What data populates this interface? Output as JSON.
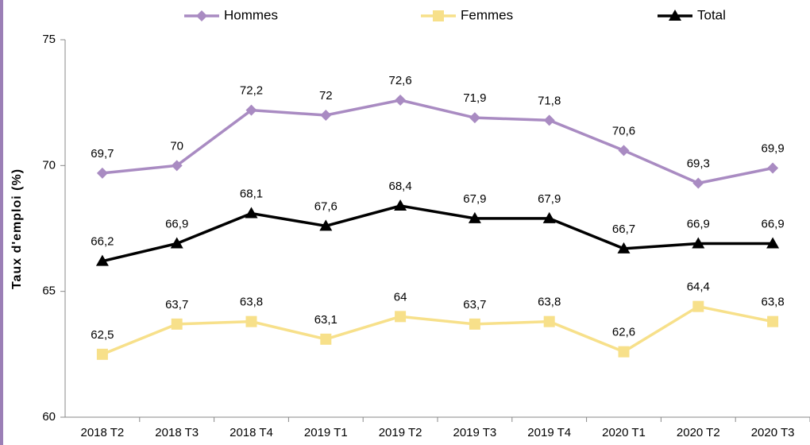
{
  "chart_data": {
    "type": "line",
    "y_label": "Taux d'emploi (%)",
    "categories": [
      "2018 T2",
      "2018 T3",
      "2018 T4",
      "2019 T1",
      "2019 T2",
      "2019 T3",
      "2019 T4",
      "2020 T1",
      "2020 T2",
      "2020 T3"
    ],
    "series": [
      {
        "name": "Hommes",
        "color": "#a98bc2",
        "marker": "diamond",
        "values": [
          69.7,
          70,
          72.2,
          72,
          72.6,
          71.9,
          71.8,
          70.6,
          69.3,
          69.9
        ],
        "value_labels": [
          "69,7",
          "70",
          "72,2",
          "72",
          "72,6",
          "71,9",
          "71,8",
          "70,6",
          "69,3",
          "69,9"
        ]
      },
      {
        "name": "Femmes",
        "color": "#f7e08a",
        "marker": "square",
        "values": [
          62.5,
          63.7,
          63.8,
          63.1,
          64,
          63.7,
          63.8,
          62.6,
          64.4,
          63.8
        ],
        "value_labels": [
          "62,5",
          "63,7",
          "63,8",
          "63,1",
          "64",
          "63,7",
          "63,8",
          "62,6",
          "64,4",
          "63,8"
        ]
      },
      {
        "name": "Total",
        "color": "#000000",
        "marker": "triangle",
        "values": [
          66.2,
          66.9,
          68.1,
          67.6,
          68.4,
          67.9,
          67.9,
          66.7,
          66.9,
          66.9
        ],
        "value_labels": [
          "66,2",
          "66,9",
          "68,1",
          "67,6",
          "68,4",
          "67,9",
          "67,9",
          "66,7",
          "66,9",
          "66,9"
        ]
      }
    ],
    "ylim": [
      60,
      75
    ],
    "yticks": [
      60,
      65,
      70,
      75
    ],
    "grid": false,
    "legend": "top"
  }
}
